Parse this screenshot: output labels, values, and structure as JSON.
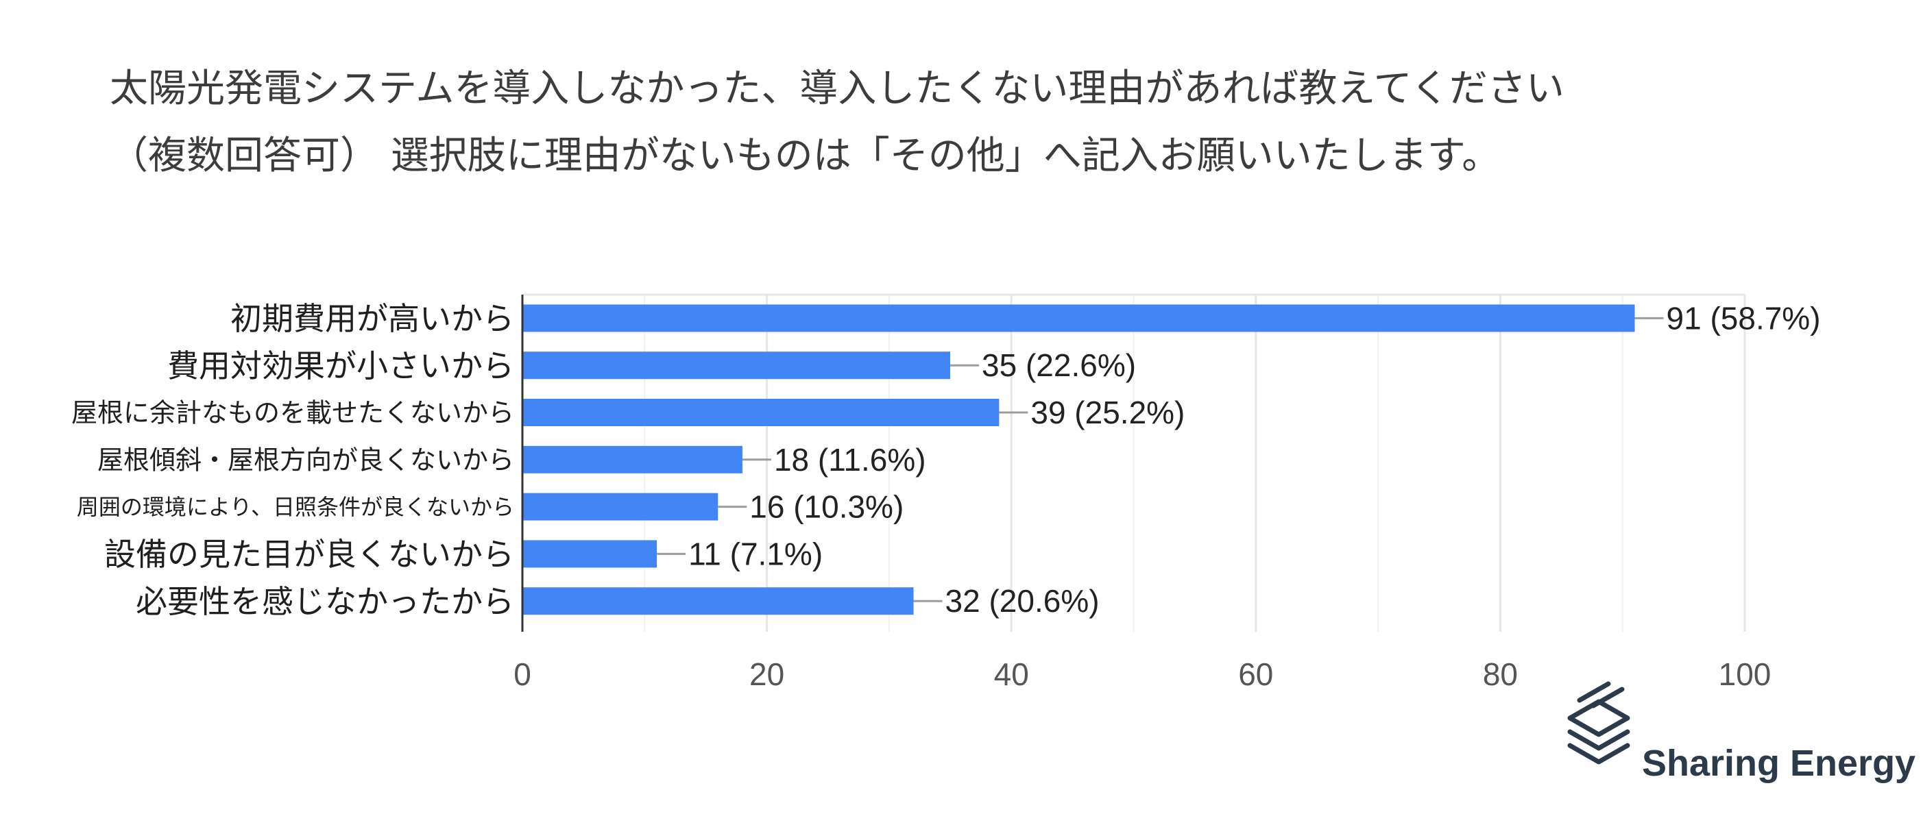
{
  "chart_data": {
    "type": "bar",
    "orientation": "horizontal",
    "title_lines": [
      "太陽光発電システムを導入しなかった、導入したくない理由があれば教えてください",
      "（複数回答可） 選択肢に理由がないものは「その他」へ記入お願いいたします。"
    ],
    "categories": [
      "初期費用が高いから",
      "費用対効果が小さいから",
      "屋根に余計なものを載せたくないから",
      "屋根傾斜・屋根方向が良くないから",
      "周囲の環境により、日照条件が良くないから",
      "設備の見た目が良くないから",
      "必要性を感じなかったから"
    ],
    "values": [
      91,
      35,
      39,
      18,
      16,
      11,
      32
    ],
    "data_labels": [
      "91 (58.7%)",
      "35 (22.6%)",
      "39 (25.2%)",
      "18 (11.6%)",
      "16 (10.3%)",
      "11 (7.1%)",
      "32 (20.6%)"
    ],
    "xlim": [
      0,
      100
    ],
    "xticks": [
      0,
      20,
      40,
      60,
      80,
      100
    ],
    "xtick_labels": [
      "0",
      "20",
      "40",
      "60",
      "80",
      "100"
    ],
    "grid": true,
    "bar_color": "#4285f4",
    "grid_color": "#e6e6e6",
    "axis_color": "#333333"
  },
  "brand": {
    "name": "Sharing Energy",
    "logo": "stacked-layers-icon",
    "color": "#2c3a4a"
  }
}
